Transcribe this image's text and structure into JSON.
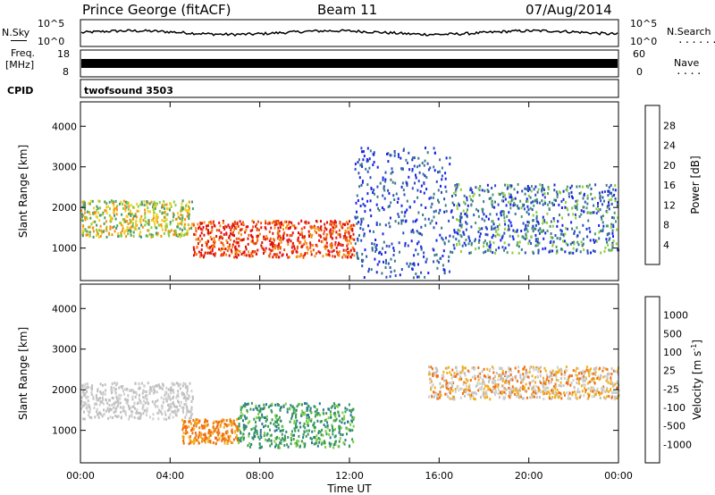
{
  "header": {
    "station": "Prince George (fitACF)",
    "beam": "Beam 11",
    "date": "07/Aug/2014"
  },
  "strips": {
    "nsky_label": "N.Sky",
    "nsky_ticks": [
      "10^5",
      "10^0"
    ],
    "nsearch_label": "N.Search",
    "nsearch_ticks": [
      "10^5",
      "10^0"
    ],
    "freq_label": "Freq.",
    "freq_unit": "[MHz]",
    "freq_ticks": [
      "18",
      "8"
    ],
    "nave_label": "Nave",
    "nave_ticks": [
      "60",
      "0"
    ],
    "cpid_label": "CPID",
    "cpid_value": "twofsound 3503"
  },
  "colors": {
    "power_scale": [
      "#1a24e6",
      "#2a4fc0",
      "#3a7a8a",
      "#4a9a6a",
      "#8ccf3a",
      "#f0d020",
      "#f59010",
      "#f05010",
      "#e01010"
    ],
    "velocity_scale": [
      "#2040d0",
      "#2a7a90",
      "#3a9a5a",
      "#7ad040",
      "#c0c0c0",
      "#d0d0d0",
      "#f0b020",
      "#f07010",
      "#e02010"
    ]
  },
  "chart_data": [
    {
      "type": "heatmap",
      "title": "",
      "ylabel": "Slant Range [km]",
      "xlabel": "",
      "ylim": [
        200,
        4600
      ],
      "yticks": [
        "1000",
        "2000",
        "3000",
        "4000"
      ],
      "xticks": [
        "00:00",
        "04:00",
        "08:00",
        "12:00",
        "16:00",
        "20:00",
        "00:00"
      ],
      "colorbar": {
        "label": "Power [dB]",
        "ticks": [
          "4",
          "8",
          "12",
          "16",
          "20",
          "24",
          "28"
        ]
      },
      "regions": [
        {
          "t": [
            0.0,
            5.0
          ],
          "range_km": [
            1300,
            2200
          ],
          "level": "16-24 dB"
        },
        {
          "t": [
            5.0,
            12.2
          ],
          "range_km": [
            800,
            1700
          ],
          "level": "24-28 dB"
        },
        {
          "t": [
            12.2,
            16.5
          ],
          "range_km": [
            300,
            3500
          ],
          "level": "4-8 dB"
        },
        {
          "t": [
            16.5,
            24.0
          ],
          "range_km": [
            900,
            2600
          ],
          "level": "4-16 dB"
        }
      ]
    },
    {
      "type": "heatmap",
      "title": "",
      "ylabel": "Slant Range [km]",
      "xlabel": "Time UT",
      "ylim": [
        200,
        4600
      ],
      "yticks": [
        "1000",
        "2000",
        "3000",
        "4000"
      ],
      "xticks": [
        "00:00",
        "04:00",
        "08:00",
        "12:00",
        "16:00",
        "20:00",
        "00:00"
      ],
      "colorbar": {
        "label": "Velocity [m s-1]",
        "ticks": [
          "1000",
          "500",
          "100",
          "25",
          "-25",
          "-100",
          "-500",
          "-1000"
        ]
      },
      "regions": [
        {
          "t": [
            0.0,
            5.0
          ],
          "range_km": [
            1300,
            2200
          ],
          "level": "-25 to 25 m/s"
        },
        {
          "t": [
            4.5,
            7.0
          ],
          "range_km": [
            700,
            1300
          ],
          "level": "-500 to -100 m/s"
        },
        {
          "t": [
            7.0,
            12.2
          ],
          "range_km": [
            600,
            1700
          ],
          "level": "100 to 500 m/s"
        },
        {
          "t": [
            15.5,
            24.0
          ],
          "range_km": [
            1800,
            2600
          ],
          "level": "-100 to 25 m/s"
        }
      ]
    }
  ]
}
